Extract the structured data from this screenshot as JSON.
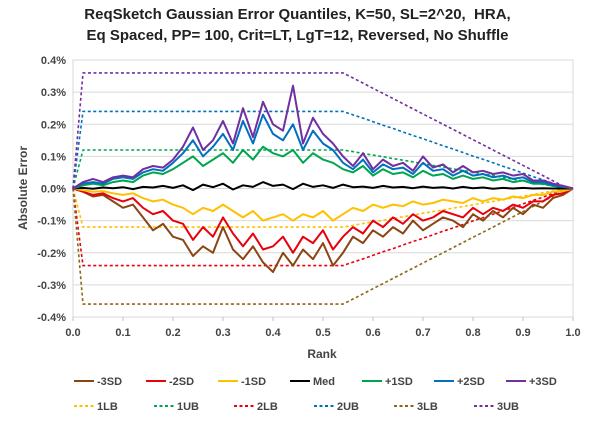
{
  "chart_data": {
    "type": "line",
    "title_lines": [
      "ReqSketch Gaussian Error Quantiles, K=50, SL=2^20,  HRA,",
      "Eq Spaced, PP= 100, Crit=LT, LgT=12, Reversed, No Shuffle"
    ],
    "xlabel": "Rank",
    "ylabel": "Absolute Error",
    "xlim": [
      0.0,
      1.0
    ],
    "ylim": [
      -0.004,
      0.004
    ],
    "x_ticks": [
      "0.0",
      "0.1",
      "0.2",
      "0.3",
      "0.4",
      "0.5",
      "0.6",
      "0.7",
      "0.8",
      "0.9",
      "1.0"
    ],
    "y_ticks": [
      "0.4%",
      "0.3%",
      "0.2%",
      "0.1%",
      "0.0%",
      "-0.1%",
      "-0.2%",
      "-0.3%",
      "-0.4%"
    ],
    "grid": "horizontal",
    "legend_position": "bottom",
    "colors": {
      "m3sd": "#8B4513",
      "m2sd": "#E8000B",
      "m1sd": "#FFC000",
      "med": "#000000",
      "p1sd": "#00A550",
      "p2sd": "#0070C0",
      "p3sd": "#7030A0",
      "lb1": "#FFC000",
      "ub1": "#00A550",
      "lb2": "#E8000B",
      "ub2": "#0070C0",
      "lb3": "#8B6914",
      "ub3": "#7030A0"
    },
    "x": [
      0.0,
      0.02,
      0.04,
      0.06,
      0.08,
      0.1,
      0.12,
      0.14,
      0.16,
      0.18,
      0.2,
      0.22,
      0.24,
      0.26,
      0.28,
      0.3,
      0.32,
      0.34,
      0.36,
      0.38,
      0.4,
      0.42,
      0.44,
      0.46,
      0.48,
      0.5,
      0.52,
      0.54,
      0.56,
      0.58,
      0.6,
      0.62,
      0.64,
      0.66,
      0.68,
      0.7,
      0.72,
      0.74,
      0.76,
      0.78,
      0.8,
      0.82,
      0.84,
      0.86,
      0.88,
      0.9,
      0.92,
      0.94,
      0.96,
      0.98,
      1.0
    ],
    "series": [
      {
        "key": "m3sd",
        "name": "-3SD",
        "dashed": false,
        "values": [
          0,
          -0.0001,
          -0.00025,
          -0.0002,
          -0.0004,
          -0.0006,
          -0.0005,
          -0.0009,
          -0.0013,
          -0.0011,
          -0.0015,
          -0.0016,
          -0.0021,
          -0.0018,
          -0.002,
          -0.0012,
          -0.0019,
          -0.0022,
          -0.0018,
          -0.0023,
          -0.0026,
          -0.002,
          -0.0024,
          -0.0019,
          -0.0022,
          -0.0017,
          -0.0024,
          -0.002,
          -0.0015,
          -0.0017,
          -0.0013,
          -0.0015,
          -0.0012,
          -0.0014,
          -0.001,
          -0.0013,
          -0.0011,
          -0.0009,
          -0.001,
          -0.0012,
          -0.0008,
          -0.001,
          -0.0007,
          -0.0009,
          -0.0006,
          -0.0008,
          -0.0005,
          -0.0006,
          -0.0003,
          -0.0002,
          0
        ]
      },
      {
        "key": "m2sd",
        "name": "-2SD",
        "dashed": false,
        "values": [
          0,
          -0.0001,
          -0.0002,
          -0.00015,
          -0.0003,
          -0.0004,
          -0.0003,
          -0.0006,
          -0.0008,
          -0.0007,
          -0.001,
          -0.0011,
          -0.0016,
          -0.0012,
          -0.0015,
          -0.0009,
          -0.0014,
          -0.0018,
          -0.0014,
          -0.0019,
          -0.0018,
          -0.0015,
          -0.002,
          -0.0015,
          -0.0017,
          -0.0013,
          -0.0019,
          -0.0015,
          -0.0012,
          -0.0014,
          -0.001,
          -0.0012,
          -0.0009,
          -0.0011,
          -0.0008,
          -0.001,
          -0.0009,
          -0.0007,
          -0.0008,
          -0.0009,
          -0.0006,
          -0.0008,
          -0.0006,
          -0.0007,
          -0.0005,
          -0.0006,
          -0.0004,
          -0.0004,
          -0.0002,
          -0.00015,
          0
        ]
      },
      {
        "key": "m1sd",
        "name": "-1SD",
        "dashed": false,
        "values": [
          0,
          -5e-05,
          -0.0001,
          -8e-05,
          -0.00015,
          -0.0002,
          -0.00015,
          -0.0003,
          -0.0004,
          -0.00035,
          -0.0005,
          -0.0006,
          -0.0008,
          -0.0006,
          -0.0007,
          -0.0005,
          -0.0007,
          -0.0009,
          -0.0007,
          -0.001,
          -0.0009,
          -0.0008,
          -0.001,
          -0.0008,
          -0.0009,
          -0.0007,
          -0.001,
          -0.0008,
          -0.0006,
          -0.0007,
          -0.0005,
          -0.0006,
          -0.0005,
          -0.00055,
          -0.0004,
          -0.0005,
          -0.00045,
          -0.00035,
          -0.0004,
          -0.00045,
          -0.0003,
          -0.0004,
          -0.0003,
          -0.00035,
          -0.00025,
          -0.0003,
          -0.0002,
          -0.0002,
          -0.0001,
          -8e-05,
          0
        ]
      },
      {
        "key": "med",
        "name": "Med",
        "dashed": false,
        "values": [
          0,
          2e-05,
          -1e-05,
          3e-05,
          1e-05,
          4e-05,
          -2e-05,
          5e-05,
          3e-05,
          8e-05,
          2e-05,
          0.0001,
          -5e-05,
          0.00012,
          4e-05,
          0.00015,
          -3e-05,
          0.0001,
          5e-05,
          0.0002,
          8e-05,
          0.00012,
          -2e-05,
          0.00015,
          5e-05,
          0.0001,
          2e-05,
          0.00012,
          4e-05,
          6e-05,
          2e-05,
          8e-05,
          3e-05,
          5e-05,
          1e-05,
          6e-05,
          2e-05,
          4e-05,
          0.0,
          5e-05,
          1e-05,
          3e-05,
          -1e-05,
          2e-05,
          0.0,
          2e-05,
          0.0,
          1e-05,
          0.0,
          0.0,
          0
        ]
      },
      {
        "key": "p1sd",
        "name": "+1SD",
        "dashed": false,
        "values": [
          0,
          0.0001,
          0.00015,
          0.0001,
          0.0002,
          0.00025,
          0.0002,
          0.0004,
          0.0005,
          0.00045,
          0.0006,
          0.0008,
          0.001,
          0.0007,
          0.0009,
          0.0011,
          0.0008,
          0.0012,
          0.0009,
          0.0013,
          0.0011,
          0.001,
          0.0012,
          0.0008,
          0.0011,
          0.0009,
          0.0008,
          0.0006,
          0.0005,
          0.0007,
          0.0004,
          0.0006,
          0.00045,
          0.0005,
          0.00035,
          0.00055,
          0.0004,
          0.00045,
          0.0003,
          0.0004,
          0.0003,
          0.00035,
          0.00025,
          0.0003,
          0.0002,
          0.00025,
          0.00015,
          0.00015,
          8e-05,
          5e-05,
          0
        ]
      },
      {
        "key": "p2sd",
        "name": "+2SD",
        "dashed": false,
        "values": [
          0,
          0.00015,
          0.0002,
          0.00015,
          0.0003,
          0.00035,
          0.0003,
          0.0005,
          0.0006,
          0.00055,
          0.0008,
          0.0011,
          0.0015,
          0.001,
          0.0013,
          0.0017,
          0.0012,
          0.0021,
          0.0014,
          0.0023,
          0.0017,
          0.0015,
          0.002,
          0.0012,
          0.0018,
          0.0014,
          0.0012,
          0.0008,
          0.0006,
          0.0009,
          0.0005,
          0.00075,
          0.0006,
          0.00065,
          0.00045,
          0.0008,
          0.00055,
          0.0006,
          0.0004,
          0.00055,
          0.0004,
          0.00045,
          0.00035,
          0.0004,
          0.0003,
          0.00035,
          0.0002,
          0.0002,
          0.0001,
          6e-05,
          0
        ]
      },
      {
        "key": "p3sd",
        "name": "+3SD",
        "dashed": false,
        "values": [
          0,
          0.0002,
          0.0003,
          0.0002,
          0.00035,
          0.0004,
          0.00035,
          0.0006,
          0.0007,
          0.00065,
          0.0009,
          0.0013,
          0.0019,
          0.0012,
          0.0015,
          0.0021,
          0.0014,
          0.0025,
          0.0016,
          0.0027,
          0.002,
          0.0018,
          0.0032,
          0.0014,
          0.0022,
          0.0017,
          0.0014,
          0.001,
          0.0007,
          0.0011,
          0.0006,
          0.0009,
          0.0007,
          0.0008,
          0.00055,
          0.001,
          0.00065,
          0.00075,
          0.0005,
          0.0007,
          0.0005,
          0.00055,
          0.00045,
          0.0005,
          0.0004,
          0.00045,
          0.00025,
          0.00025,
          0.00015,
          8e-05,
          0
        ]
      },
      {
        "key": "lb1",
        "name": "1LB",
        "dashed": true,
        "values": [
          0,
          -0.0012,
          -0.0012,
          -0.0012,
          -0.0012,
          -0.0012,
          -0.0012,
          -0.0012,
          -0.0012,
          -0.0012,
          -0.0012,
          -0.0012,
          -0.0012,
          -0.0012,
          -0.0012,
          -0.0012,
          -0.0012,
          -0.0012,
          -0.0012,
          -0.0012,
          -0.0012,
          -0.0012,
          -0.0012,
          -0.0012,
          -0.0012,
          -0.0012,
          -0.0012,
          -0.0012,
          -0.00115,
          -0.00109,
          -0.00104,
          -0.00099,
          -0.00093,
          -0.00088,
          -0.00083,
          -0.00077,
          -0.00072,
          -0.00067,
          -0.00061,
          -0.00056,
          -0.00051,
          -0.00045,
          -0.0004,
          -0.00035,
          -0.00029,
          -0.00024,
          -0.00019,
          -0.00013,
          -8e-05,
          -3e-05,
          0
        ]
      },
      {
        "key": "ub1",
        "name": "1UB",
        "dashed": true,
        "values": [
          0,
          0.0012,
          0.0012,
          0.0012,
          0.0012,
          0.0012,
          0.0012,
          0.0012,
          0.0012,
          0.0012,
          0.0012,
          0.0012,
          0.0012,
          0.0012,
          0.0012,
          0.0012,
          0.0012,
          0.0012,
          0.0012,
          0.0012,
          0.0012,
          0.0012,
          0.0012,
          0.0012,
          0.0012,
          0.0012,
          0.0012,
          0.0012,
          0.00115,
          0.00109,
          0.00104,
          0.00099,
          0.00093,
          0.00088,
          0.00083,
          0.00077,
          0.00072,
          0.00067,
          0.00061,
          0.00056,
          0.00051,
          0.00045,
          0.0004,
          0.00035,
          0.00029,
          0.00024,
          0.00019,
          0.00013,
          8e-05,
          3e-05,
          0
        ]
      },
      {
        "key": "lb2",
        "name": "2LB",
        "dashed": true,
        "values": [
          0,
          -0.0024,
          -0.0024,
          -0.0024,
          -0.0024,
          -0.0024,
          -0.0024,
          -0.0024,
          -0.0024,
          -0.0024,
          -0.0024,
          -0.0024,
          -0.0024,
          -0.0024,
          -0.0024,
          -0.0024,
          -0.0024,
          -0.0024,
          -0.0024,
          -0.0024,
          -0.0024,
          -0.0024,
          -0.0024,
          -0.0024,
          -0.0024,
          -0.0024,
          -0.0024,
          -0.0024,
          -0.00229,
          -0.00219,
          -0.00208,
          -0.00197,
          -0.00187,
          -0.00176,
          -0.00165,
          -0.00155,
          -0.00144,
          -0.00133,
          -0.00123,
          -0.00112,
          -0.00101,
          -0.00091,
          -0.0008,
          -0.00069,
          -0.00059,
          -0.00048,
          -0.00037,
          -0.00027,
          -0.00016,
          -5e-05,
          0
        ]
      },
      {
        "key": "ub2",
        "name": "2UB",
        "dashed": true,
        "values": [
          0,
          0.0024,
          0.0024,
          0.0024,
          0.0024,
          0.0024,
          0.0024,
          0.0024,
          0.0024,
          0.0024,
          0.0024,
          0.0024,
          0.0024,
          0.0024,
          0.0024,
          0.0024,
          0.0024,
          0.0024,
          0.0024,
          0.0024,
          0.0024,
          0.0024,
          0.0024,
          0.0024,
          0.0024,
          0.0024,
          0.0024,
          0.0024,
          0.00229,
          0.00219,
          0.00208,
          0.00197,
          0.00187,
          0.00176,
          0.00165,
          0.00155,
          0.00144,
          0.00133,
          0.00123,
          0.00112,
          0.00101,
          0.00091,
          0.0008,
          0.00069,
          0.00059,
          0.00048,
          0.00037,
          0.00027,
          0.00016,
          5e-05,
          0
        ]
      },
      {
        "key": "lb3",
        "name": "3LB",
        "dashed": true,
        "values": [
          0,
          -0.0036,
          -0.0036,
          -0.0036,
          -0.0036,
          -0.0036,
          -0.0036,
          -0.0036,
          -0.0036,
          -0.0036,
          -0.0036,
          -0.0036,
          -0.0036,
          -0.0036,
          -0.0036,
          -0.0036,
          -0.0036,
          -0.0036,
          -0.0036,
          -0.0036,
          -0.0036,
          -0.0036,
          -0.0036,
          -0.0036,
          -0.0036,
          -0.0036,
          -0.0036,
          -0.0036,
          -0.00344,
          -0.00328,
          -0.00312,
          -0.00296,
          -0.0028,
          -0.00264,
          -0.00248,
          -0.00232,
          -0.00216,
          -0.002,
          -0.00184,
          -0.00168,
          -0.00152,
          -0.00136,
          -0.0012,
          -0.00104,
          -0.00088,
          -0.00072,
          -0.00056,
          -0.0004,
          -0.00024,
          -8e-05,
          0
        ]
      },
      {
        "key": "ub3",
        "name": "3UB",
        "dashed": true,
        "values": [
          0,
          0.0036,
          0.0036,
          0.0036,
          0.0036,
          0.0036,
          0.0036,
          0.0036,
          0.0036,
          0.0036,
          0.0036,
          0.0036,
          0.0036,
          0.0036,
          0.0036,
          0.0036,
          0.0036,
          0.0036,
          0.0036,
          0.0036,
          0.0036,
          0.0036,
          0.0036,
          0.0036,
          0.0036,
          0.0036,
          0.0036,
          0.0036,
          0.00344,
          0.00328,
          0.00312,
          0.00296,
          0.0028,
          0.00264,
          0.00248,
          0.00232,
          0.00216,
          0.002,
          0.00184,
          0.00168,
          0.00152,
          0.00136,
          0.0012,
          0.00104,
          0.00088,
          0.00072,
          0.00056,
          0.0004,
          0.00024,
          8e-05,
          0
        ]
      }
    ],
    "legend_rows": [
      [
        "m3sd",
        "m2sd",
        "m1sd",
        "med",
        "p1sd",
        "p2sd",
        "p3sd"
      ],
      [
        "lb1",
        "ub1",
        "lb2",
        "ub2",
        "lb3",
        "ub3"
      ]
    ]
  }
}
